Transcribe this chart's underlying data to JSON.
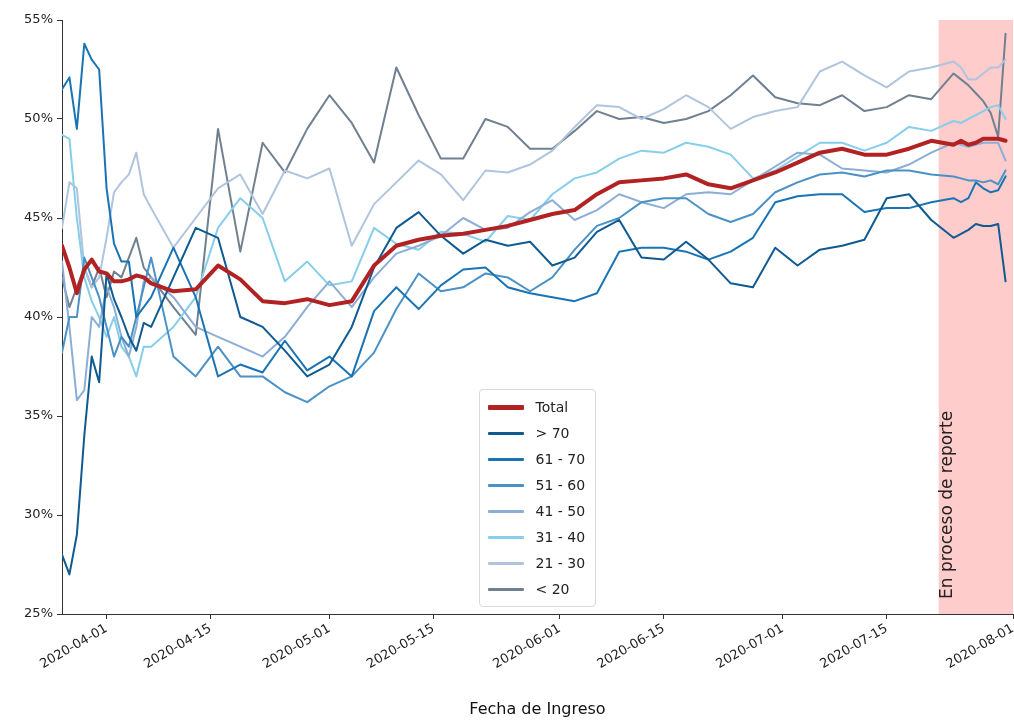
{
  "chart_data": {
    "type": "line",
    "xlabel": "Fecha de Ingreso",
    "x": [
      "2020-03-26",
      "2020-03-27",
      "2020-03-28",
      "2020-03-29",
      "2020-03-30",
      "2020-03-31",
      "2020-04-01",
      "2020-04-02",
      "2020-04-03",
      "2020-04-04",
      "2020-04-05",
      "2020-04-06",
      "2020-04-07",
      "2020-04-10",
      "2020-04-13",
      "2020-04-16",
      "2020-04-19",
      "2020-04-22",
      "2020-04-25",
      "2020-04-28",
      "2020-05-01",
      "2020-05-04",
      "2020-05-07",
      "2020-05-10",
      "2020-05-13",
      "2020-05-16",
      "2020-05-19",
      "2020-05-22",
      "2020-05-25",
      "2020-05-28",
      "2020-05-31",
      "2020-06-03",
      "2020-06-06",
      "2020-06-09",
      "2020-06-12",
      "2020-06-15",
      "2020-06-18",
      "2020-06-21",
      "2020-06-24",
      "2020-06-27",
      "2020-06-30",
      "2020-07-03",
      "2020-07-06",
      "2020-07-09",
      "2020-07-12",
      "2020-07-15",
      "2020-07-18",
      "2020-07-21",
      "2020-07-24",
      "2020-07-25",
      "2020-07-26",
      "2020-07-27",
      "2020-07-28",
      "2020-07-29",
      "2020-07-30",
      "2020-07-31"
    ],
    "xlim": [
      "2020-03-26",
      "2020-08-01"
    ],
    "xticks": [
      "2020-04-01",
      "2020-04-15",
      "2020-05-01",
      "2020-05-15",
      "2020-06-01",
      "2020-06-15",
      "2020-07-01",
      "2020-07-15",
      "2020-08-01"
    ],
    "ylim": [
      25,
      55
    ],
    "yticks": [
      {
        "value": 25,
        "label": "25%"
      },
      {
        "value": 30,
        "label": "30%"
      },
      {
        "value": 35,
        "label": "35%"
      },
      {
        "value": 40,
        "label": "40%"
      },
      {
        "value": 45,
        "label": "45%"
      },
      {
        "value": 50,
        "label": "50%"
      },
      {
        "value": 55,
        "label": "55%"
      }
    ],
    "legend": "bottom",
    "line_style": "solid",
    "bands": [
      {
        "axis": "x",
        "from": "2020-07-22",
        "to": "2020-08-01",
        "label": "En proceso de reporte",
        "color": "#ffcccc"
      }
    ],
    "series": [
      {
        "name": "Total",
        "color": "#b22222",
        "values": [
          43.6,
          42.5,
          41.2,
          42.4,
          42.9,
          42.3,
          42.2,
          41.8,
          41.8,
          41.9,
          42.1,
          42.0,
          41.7,
          41.3,
          41.4,
          42.6,
          41.9,
          40.8,
          40.7,
          40.9,
          40.6,
          40.8,
          42.6,
          43.6,
          43.9,
          44.1,
          44.2,
          44.4,
          44.6,
          44.9,
          45.2,
          45.4,
          46.2,
          46.8,
          46.9,
          47.0,
          47.2,
          46.7,
          46.5,
          46.9,
          47.3,
          47.8,
          48.3,
          48.5,
          48.2,
          48.2,
          48.5,
          48.9,
          48.7,
          48.9,
          48.7,
          48.8,
          49.0,
          49.0,
          49.0,
          48.9
        ]
      },
      {
        "name": "> 70",
        "color": "#0e5a91",
        "values": [
          28.0,
          27.0,
          29.0,
          34.0,
          38.0,
          36.7,
          42.2,
          40.9,
          40.0,
          39.0,
          38.3,
          39.7,
          39.5,
          42.0,
          44.5,
          44.0,
          40.0,
          39.5,
          38.3,
          37.0,
          37.6,
          39.5,
          42.5,
          44.5,
          45.3,
          44.1,
          43.2,
          43.9,
          43.6,
          43.8,
          42.6,
          43.0,
          44.3,
          44.9,
          43.0,
          42.9,
          43.8,
          42.9,
          41.7,
          41.5,
          43.5,
          42.6,
          43.4,
          43.6,
          43.9,
          46.0,
          46.2,
          44.9,
          44.0,
          44.2,
          44.4,
          44.7,
          44.6,
          44.6,
          44.7,
          41.8
        ]
      },
      {
        "name": "61 - 70",
        "color": "#1a74b4",
        "values": [
          51.5,
          52.1,
          49.5,
          53.8,
          53.0,
          52.5,
          46.5,
          43.7,
          42.8,
          42.8,
          40.0,
          40.5,
          41.0,
          43.5,
          41.0,
          37.0,
          37.6,
          37.2,
          38.8,
          37.3,
          38.0,
          37.0,
          40.3,
          41.5,
          40.4,
          41.6,
          42.4,
          42.5,
          41.5,
          41.2,
          41.0,
          40.8,
          41.2,
          43.3,
          43.5,
          43.5,
          43.3,
          42.9,
          43.3,
          44.0,
          45.8,
          46.1,
          46.2,
          46.2,
          45.3,
          45.5,
          45.5,
          45.8,
          46.0,
          45.8,
          46.0,
          46.8,
          46.5,
          46.3,
          46.4,
          47.1
        ]
      },
      {
        "name": "51 - 60",
        "color": "#4a92c6",
        "values": [
          38.2,
          40.0,
          40.0,
          43.0,
          42.0,
          41.0,
          39.5,
          38.0,
          39.0,
          38.5,
          40.0,
          41.5,
          43.0,
          38.0,
          37.0,
          38.5,
          37.0,
          37.0,
          36.2,
          35.7,
          36.5,
          37.0,
          38.2,
          40.4,
          42.2,
          41.3,
          41.5,
          42.2,
          42.0,
          41.3,
          42.0,
          43.4,
          44.6,
          45.0,
          45.8,
          46.0,
          46.0,
          45.2,
          44.8,
          45.2,
          46.3,
          46.8,
          47.2,
          47.3,
          47.1,
          47.4,
          47.4,
          47.2,
          47.1,
          47.0,
          46.9,
          46.9,
          46.8,
          46.9,
          46.7,
          47.4
        ]
      },
      {
        "name": "41 - 50",
        "color": "#8caed6",
        "values": [
          42.8,
          39.5,
          35.8,
          36.3,
          40.0,
          39.5,
          41.5,
          40.5,
          39.0,
          38.0,
          39.5,
          41.8,
          42.0,
          41.0,
          39.5,
          39.0,
          38.5,
          38.0,
          39.0,
          40.5,
          41.8,
          40.5,
          42.0,
          43.2,
          43.6,
          44.1,
          45.0,
          44.4,
          44.5,
          45.3,
          45.9,
          44.9,
          45.4,
          46.2,
          45.8,
          45.5,
          46.2,
          46.3,
          46.2,
          46.9,
          47.6,
          48.3,
          48.2,
          47.5,
          47.4,
          47.3,
          47.7,
          48.3,
          48.8,
          48.7,
          48.6,
          48.7,
          48.8,
          48.8,
          48.8,
          47.9
        ]
      },
      {
        "name": "31 - 40",
        "color": "#87ceeb",
        "values": [
          49.2,
          49.0,
          45.0,
          42.0,
          40.8,
          40.0,
          39.0,
          40.0,
          38.5,
          38.0,
          37.0,
          38.5,
          38.5,
          39.5,
          41.0,
          44.5,
          46.0,
          45.0,
          41.8,
          42.8,
          41.6,
          41.8,
          44.5,
          43.7,
          43.4,
          44.3,
          44.2,
          43.8,
          45.1,
          44.9,
          46.2,
          47.0,
          47.3,
          48.0,
          48.4,
          48.3,
          48.8,
          48.6,
          48.2,
          47.0,
          47.4,
          48.1,
          48.8,
          48.8,
          48.4,
          48.8,
          49.6,
          49.4,
          49.9,
          49.8,
          50.0,
          50.2,
          50.4,
          50.6,
          50.7,
          50.0
        ]
      },
      {
        "name": "21 - 30",
        "color": "#b0c4de",
        "values": [
          44.5,
          46.8,
          46.5,
          42.5,
          41.5,
          42.0,
          44.0,
          46.3,
          46.8,
          47.2,
          48.3,
          46.2,
          45.5,
          43.5,
          45.0,
          46.5,
          47.2,
          45.2,
          47.4,
          47.0,
          47.5,
          43.6,
          45.7,
          46.8,
          47.9,
          47.2,
          45.9,
          47.4,
          47.3,
          47.7,
          48.4,
          49.6,
          50.7,
          50.6,
          50.0,
          50.5,
          51.2,
          50.6,
          49.5,
          50.1,
          50.4,
          50.6,
          52.4,
          52.9,
          52.2,
          51.6,
          52.4,
          52.6,
          52.9,
          52.6,
          52.0,
          52.0,
          52.3,
          52.6,
          52.6,
          53.0
        ]
      },
      {
        "name": "< 20",
        "color": "#708090",
        "values": [
          42.0,
          40.5,
          41.5,
          42.5,
          41.5,
          42.5,
          41.0,
          42.3,
          42.0,
          43.0,
          44.0,
          42.5,
          42.0,
          40.5,
          39.1,
          49.5,
          43.3,
          48.8,
          47.3,
          49.5,
          51.2,
          49.8,
          47.8,
          52.6,
          50.2,
          48.0,
          48.0,
          50.0,
          49.6,
          48.5,
          48.5,
          49.4,
          50.4,
          50.0,
          50.1,
          49.8,
          50.0,
          50.4,
          51.2,
          52.2,
          51.1,
          50.8,
          50.7,
          51.2,
          50.4,
          50.6,
          51.2,
          51.0,
          52.3,
          52.0,
          51.7,
          51.3,
          50.9,
          50.3,
          49.1,
          54.3
        ]
      }
    ]
  }
}
